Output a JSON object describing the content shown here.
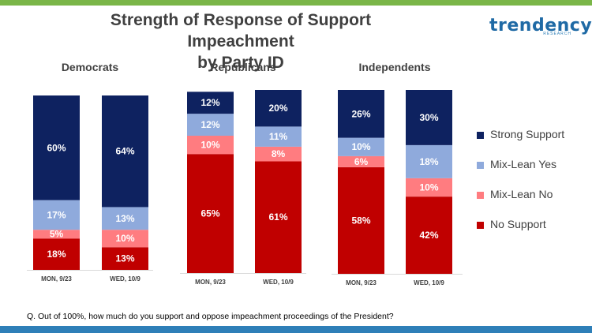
{
  "header": {
    "title_line1": "Strength of Response of Support Impeachment",
    "title_line2": "by Party ID",
    "logo_text": "trendency",
    "logo_sub": "RESEARCH"
  },
  "footnote": "Q. Out of 100%, how much do you support and oppose impeachment proceedings of the President?",
  "colors": {
    "strong_support": "#0e2260",
    "mix_lean_yes": "#8faadc",
    "mix_lean_no": "#ff7c80",
    "no_support": "#c00000",
    "top_bar": "#7ab648",
    "bottom_bar": "#2e7fb8"
  },
  "chart_data": {
    "type": "bar",
    "stacked": true,
    "title": "Strength of Response of Support Impeachment by Party ID",
    "legend_position": "right",
    "segments": [
      "No Support",
      "Mix-Lean No",
      "Mix-Lean Yes",
      "Strong Support"
    ],
    "groups": [
      {
        "name": "Democrats",
        "categories": [
          "MON, 9/23",
          "WED, 10/9"
        ],
        "series": [
          {
            "name": "No Support",
            "values": [
              18,
              13
            ],
            "labels": [
              "18%",
              "13%"
            ]
          },
          {
            "name": "Mix-Lean No",
            "values": [
              5,
              10
            ],
            "labels": [
              "5%",
              "10%"
            ]
          },
          {
            "name": "Mix-Lean Yes",
            "values": [
              17,
              13
            ],
            "labels": [
              "17%",
              "13%"
            ]
          },
          {
            "name": "Strong Support",
            "values": [
              60,
              64
            ],
            "labels": [
              "60%",
              "64%"
            ]
          }
        ]
      },
      {
        "name": "Republicans",
        "categories": [
          "MON, 9/23",
          "WED, 10/9"
        ],
        "series": [
          {
            "name": "No Support",
            "values": [
              65,
              61
            ],
            "labels": [
              "65%",
              "61%"
            ]
          },
          {
            "name": "Mix-Lean No",
            "values": [
              10,
              8
            ],
            "labels": [
              "10%",
              "8%"
            ]
          },
          {
            "name": "Mix-Lean Yes",
            "values": [
              12,
              11
            ],
            "labels": [
              "12%",
              "11%"
            ]
          },
          {
            "name": "Strong Support",
            "values": [
              12,
              20
            ],
            "labels": [
              "12%",
              "20%"
            ]
          }
        ]
      },
      {
        "name": "Independents",
        "categories": [
          "MON, 9/23",
          "WED, 10/9"
        ],
        "series": [
          {
            "name": "No Support",
            "values": [
              58,
              42
            ],
            "labels": [
              "58%",
              "42%"
            ]
          },
          {
            "name": "Mix-Lean No",
            "values": [
              6,
              10
            ],
            "labels": [
              "6%",
              "10%"
            ]
          },
          {
            "name": "Mix-Lean Yes",
            "values": [
              10,
              18
            ],
            "labels": [
              "10%",
              "18%"
            ]
          },
          {
            "name": "Strong Support",
            "values": [
              26,
              30
            ],
            "labels": [
              "26%",
              "30%"
            ]
          }
        ]
      }
    ],
    "legend": [
      "Strong Support",
      "Mix-Lean Yes",
      "Mix-Lean No",
      "No Support"
    ]
  }
}
